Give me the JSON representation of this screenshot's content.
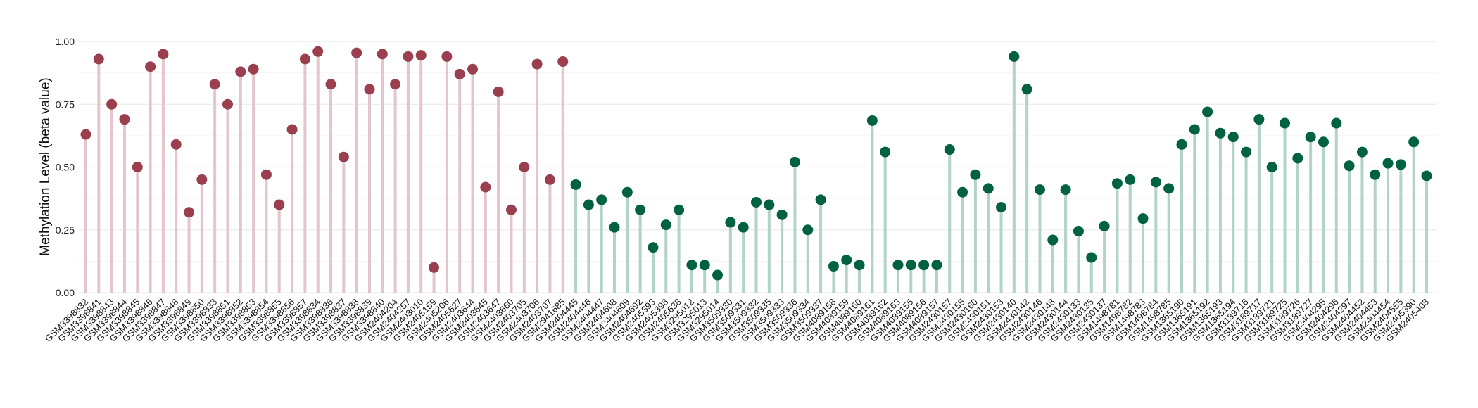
{
  "chart_data": {
    "type": "lollipop",
    "title": "",
    "xlabel": "",
    "ylabel": "Methylation Level (beta value)",
    "ylim": [
      0,
      1
    ],
    "yticks": [
      "0.00",
      "0.25",
      "0.50",
      "0.75",
      "1.00"
    ],
    "grid": true,
    "legend": "none",
    "colors": {
      "group1_point": "#9b3f4e",
      "group1_stem": "#e3c6cc",
      "group2_point": "#00623f",
      "group2_stem": "#b2d3c7"
    },
    "series": [
      {
        "name": "group1",
        "categories": [
          "GSM3398832",
          "GSM3398841",
          "GSM3398843",
          "GSM3398844",
          "GSM3398845",
          "GSM3398846",
          "GSM3398847",
          "GSM3398848",
          "GSM3398849",
          "GSM3398850",
          "GSM3398833",
          "GSM3398851",
          "GSM3398852",
          "GSM3398853",
          "GSM3398854",
          "GSM3398855",
          "GSM3398856",
          "GSM3398857",
          "GSM3398834",
          "GSM3398836",
          "GSM3398837",
          "GSM3398838",
          "GSM3398839",
          "GSM3398840",
          "GSM2404204",
          "GSM2404257",
          "GSM2403010",
          "GSM2405159",
          "GSM2405206",
          "GSM2405627",
          "GSM2403644",
          "GSM2403645",
          "GSM2403647",
          "GSM2403660",
          "GSM2403705",
          "GSM2403706",
          "GSM2403707",
          "GSM2941685"
        ],
        "values": [
          0.63,
          0.93,
          0.75,
          0.69,
          0.5,
          0.9,
          0.95,
          0.59,
          0.32,
          0.45,
          0.83,
          0.75,
          0.88,
          0.89,
          0.47,
          0.35,
          0.65,
          0.93,
          0.96,
          0.83,
          0.54,
          0.955,
          0.81,
          0.95,
          0.83,
          0.94,
          0.945,
          0.1,
          0.94,
          0.87,
          0.89,
          0.42,
          0.8,
          0.33,
          0.5,
          0.91,
          0.45,
          0.92
        ]
      },
      {
        "name": "group2",
        "categories": [
          "GSM2404445",
          "GSM2404446",
          "GSM2404447",
          "GSM2404608",
          "GSM2404609",
          "GSM2404692",
          "GSM2405393",
          "GSM2405398",
          "GSM2405638",
          "GSM3295012",
          "GSM3295013",
          "GSM3295014",
          "GSM3509330",
          "GSM3509331",
          "GSM3509332",
          "GSM3509335",
          "GSM3509333",
          "GSM3509336",
          "GSM3509334",
          "GSM3509337",
          "GSM4089158",
          "GSM4089159",
          "GSM4089160",
          "GSM4089161",
          "GSM4089162",
          "GSM4089163",
          "GSM4089155",
          "GSM4089156",
          "GSM4089157",
          "GSM2430157",
          "GSM2430155",
          "GSM2430160",
          "GSM2430151",
          "GSM2430153",
          "GSM2430140",
          "GSM2430142",
          "GSM2430146",
          "GSM2430148",
          "GSM2430144",
          "GSM2430133",
          "GSM2430135",
          "GSM2430137",
          "GSM1498781",
          "GSM1498782",
          "GSM1498783",
          "GSM1498784",
          "GSM1498785",
          "GSM1365190",
          "GSM1365191",
          "GSM1365192",
          "GSM1365193",
          "GSM1365194",
          "GSM3189716",
          "GSM3189717",
          "GSM3189721",
          "GSM3189725",
          "GSM3189726",
          "GSM3189727",
          "GSM2404295",
          "GSM2404296",
          "GSM2404297",
          "GSM2404452",
          "GSM2404453",
          "GSM2404454",
          "GSM2404555",
          "GSM2405390",
          "GSM2405408"
        ],
        "values": [
          0.43,
          0.35,
          0.37,
          0.26,
          0.4,
          0.33,
          0.18,
          0.27,
          0.33,
          0.11,
          0.11,
          0.07,
          0.28,
          0.26,
          0.36,
          0.35,
          0.31,
          0.52,
          0.25,
          0.37,
          0.105,
          0.13,
          0.11,
          0.685,
          0.56,
          0.11,
          0.11,
          0.11,
          0.11,
          0.57,
          0.4,
          0.47,
          0.415,
          0.34,
          0.94,
          0.81,
          0.41,
          0.21,
          0.41,
          0.245,
          0.14,
          0.265,
          0.435,
          0.45,
          0.295,
          0.44,
          0.415,
          0.59,
          0.65,
          0.72,
          0.635,
          0.62,
          0.56,
          0.69,
          0.5,
          0.675,
          0.535,
          0.62,
          0.6,
          0.675,
          0.505,
          0.56,
          0.47,
          0.515,
          0.51,
          0.6,
          0.465
        ]
      }
    ]
  }
}
